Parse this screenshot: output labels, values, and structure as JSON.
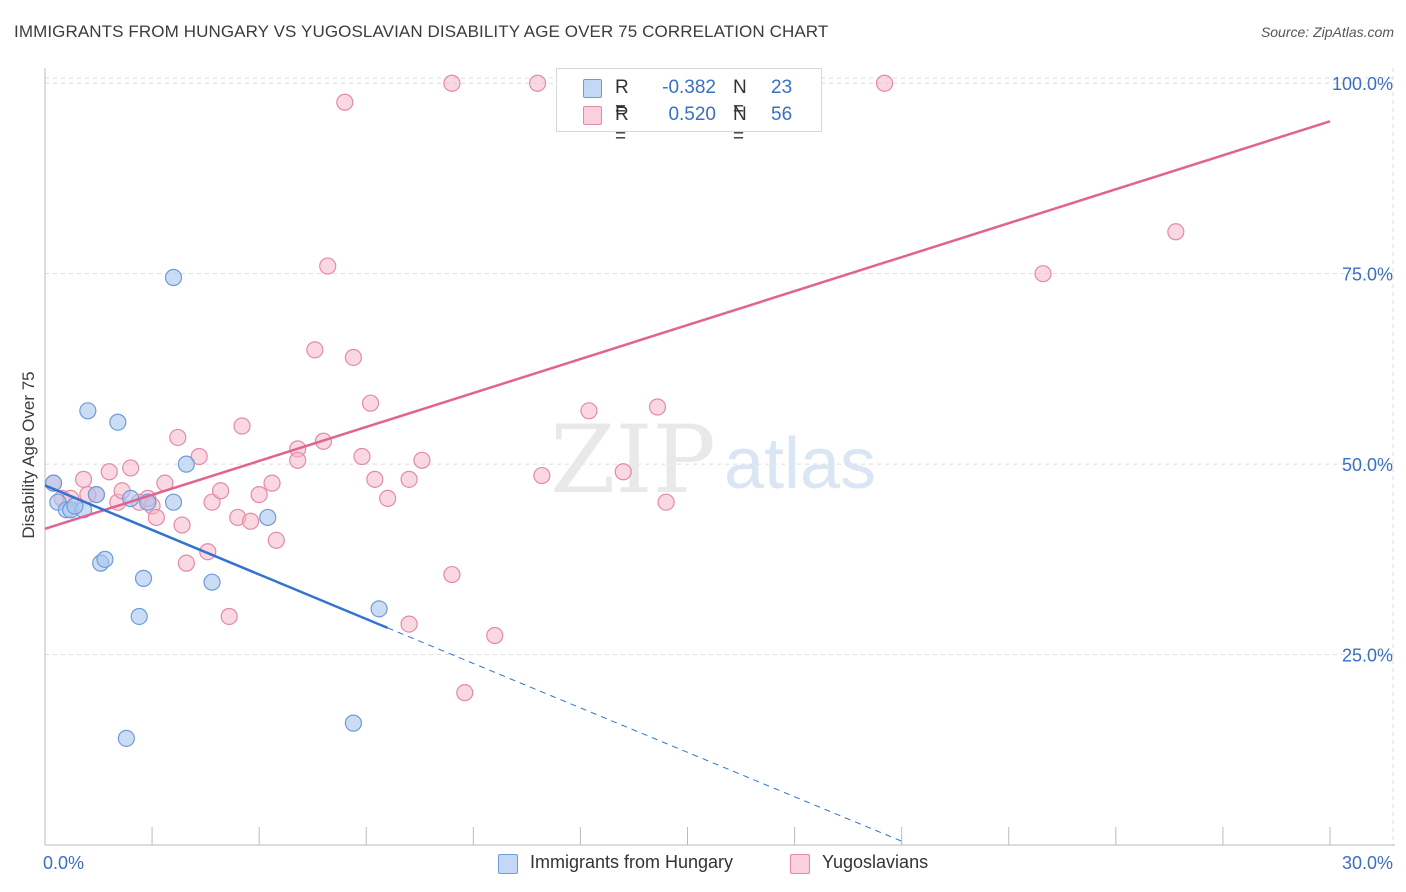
{
  "title": "IMMIGRANTS FROM HUNGARY VS YUGOSLAVIAN DISABILITY AGE OVER 75 CORRELATION CHART",
  "source": "Source: ZipAtlas.com",
  "watermark": {
    "zip": "ZIP",
    "atlas": "atlas"
  },
  "colors": {
    "blue_fill": "#a9c6ee",
    "blue_stroke": "#6f9ad8",
    "blue_line": "#2f74cf",
    "pink_fill": "#f4b8cb",
    "pink_stroke": "#e48aa7",
    "pink_line": "#e0648e",
    "axis_label": "#3a6fc4",
    "grid": "#dcdcdc"
  },
  "legend": {
    "rows": [
      {
        "r_label": "R =",
        "r_value": "-0.382",
        "n_label": "N =",
        "n_value": "23"
      },
      {
        "r_label": "R =",
        "r_value": "0.520",
        "n_label": "N =",
        "n_value": "56"
      }
    ]
  },
  "chart_data": {
    "type": "scatter",
    "title": "IMMIGRANTS FROM HUNGARY VS YUGOSLAVIAN DISABILITY AGE OVER 75 CORRELATION CHART",
    "xlabel": "",
    "ylabel": "Disability Age Over 75",
    "xlim": [
      0,
      30
    ],
    "ylim": [
      0,
      102
    ],
    "x_tick_labels": [
      "0.0%",
      "30.0%"
    ],
    "y_ticks": [
      25,
      50,
      75,
      100
    ],
    "y_tick_labels": [
      "25.0%",
      "50.0%",
      "75.0%",
      "100.0%"
    ],
    "grid": true,
    "series": [
      {
        "name": "Immigrants from Hungary",
        "color": "blue",
        "points": [
          [
            0.2,
            47.5
          ],
          [
            0.3,
            45.0
          ],
          [
            0.5,
            44.0
          ],
          [
            1.0,
            57.0
          ],
          [
            0.6,
            44.0
          ],
          [
            1.2,
            46.0
          ],
          [
            1.7,
            55.5
          ],
          [
            1.3,
            37.0
          ],
          [
            1.4,
            37.5
          ],
          [
            2.0,
            45.5
          ],
          [
            2.4,
            45.0
          ],
          [
            3.0,
            74.5
          ],
          [
            3.0,
            45.0
          ],
          [
            3.3,
            50.0
          ],
          [
            2.3,
            35.0
          ],
          [
            2.2,
            30.0
          ],
          [
            3.9,
            34.5
          ],
          [
            5.2,
            43.0
          ],
          [
            1.9,
            14.0
          ],
          [
            7.8,
            31.0
          ],
          [
            7.2,
            16.0
          ],
          [
            0.9,
            44.0
          ],
          [
            0.7,
            44.5
          ]
        ],
        "trend": {
          "x_start": 0.0,
          "y_start": 47.2,
          "x_end": 8.0,
          "y_end": 28.5,
          "dashed_to_x": 20.0,
          "dashed_to_y": 0.5
        }
      },
      {
        "name": "Yugoslavians",
        "color": "pink",
        "points": [
          [
            0.2,
            47.5
          ],
          [
            0.4,
            45.5
          ],
          [
            0.9,
            48.0
          ],
          [
            1.2,
            46.0
          ],
          [
            1.5,
            49.0
          ],
          [
            1.7,
            45.0
          ],
          [
            1.8,
            46.5
          ],
          [
            2.0,
            49.5
          ],
          [
            2.2,
            45.0
          ],
          [
            2.5,
            44.5
          ],
          [
            2.6,
            43.0
          ],
          [
            2.8,
            47.5
          ],
          [
            3.1,
            53.5
          ],
          [
            3.6,
            51.0
          ],
          [
            3.3,
            37.0
          ],
          [
            3.8,
            38.5
          ],
          [
            3.9,
            45.0
          ],
          [
            4.1,
            46.5
          ],
          [
            4.5,
            43.0
          ],
          [
            4.6,
            55.0
          ],
          [
            4.8,
            42.5
          ],
          [
            5.0,
            46.0
          ],
          [
            5.3,
            47.5
          ],
          [
            5.4,
            40.0
          ],
          [
            5.9,
            52.0
          ],
          [
            5.9,
            50.5
          ],
          [
            6.3,
            65.0
          ],
          [
            6.5,
            53.0
          ],
          [
            6.6,
            76.0
          ],
          [
            7.0,
            97.5
          ],
          [
            7.2,
            64.0
          ],
          [
            7.4,
            51.0
          ],
          [
            7.6,
            58.0
          ],
          [
            7.7,
            48.0
          ],
          [
            8.0,
            45.5
          ],
          [
            8.5,
            48.0
          ],
          [
            8.8,
            50.5
          ],
          [
            9.5,
            35.5
          ],
          [
            9.5,
            100.0
          ],
          [
            11.5,
            100.0
          ],
          [
            11.6,
            48.5
          ],
          [
            12.7,
            57.0
          ],
          [
            13.5,
            49.0
          ],
          [
            14.3,
            57.5
          ],
          [
            14.5,
            45.0
          ],
          [
            19.6,
            100.0
          ],
          [
            23.3,
            75.0
          ],
          [
            26.4,
            80.5
          ],
          [
            10.5,
            27.5
          ],
          [
            9.8,
            20.0
          ],
          [
            4.3,
            30.0
          ],
          [
            8.5,
            29.0
          ],
          [
            1.0,
            46.0
          ],
          [
            0.6,
            45.5
          ],
          [
            2.4,
            45.5
          ],
          [
            3.2,
            42.0
          ]
        ],
        "trend": {
          "x_start": 0.0,
          "y_start": 41.5,
          "x_end": 30.0,
          "y_end": 95.0
        }
      }
    ]
  }
}
